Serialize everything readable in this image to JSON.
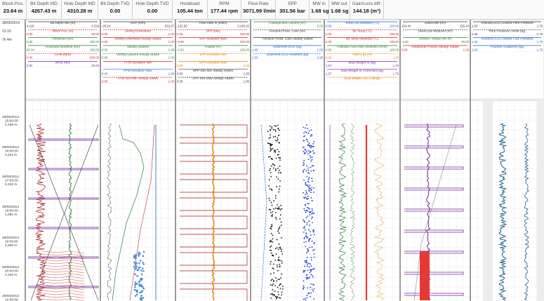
{
  "kpis": [
    {
      "label": "Block Pos.",
      "value": "23.64 m"
    },
    {
      "label": "Bit Depth MD",
      "value": "4267.43 m"
    },
    {
      "label": "Hole Depth MD",
      "value": "4310.28 m"
    },
    {
      "label": "Bit Depth TVD",
      "value": "0.00"
    },
    {
      "label": "Hole Depth TVD",
      "value": "0.00"
    },
    {
      "label": "Hookload",
      "value": "105.44 ton"
    },
    {
      "label": "RPM",
      "value": "177.44 rpm"
    },
    {
      "label": "Flow Rate",
      "value": "3071.99 l/min"
    },
    {
      "label": "SPP",
      "value": "301.56 bar"
    },
    {
      "label": "MW in",
      "value": "1.68 sg"
    },
    {
      "label": "MW out",
      "value": "1.68 sg"
    },
    {
      "label": "Gain/Loss diff.",
      "value": "144.18 (m³)"
    }
  ],
  "time_header": {
    "date": "28/05/2014",
    "time": "21:10",
    "span": "7h 4m"
  },
  "time_labels": [
    {
      "date": "28/05/2014",
      "time": "15:00:00",
      "depth": "4,166 m"
    },
    {
      "date": "28/05/2014",
      "time": "16:00:00",
      "depth": "4,211 m"
    },
    {
      "date": "28/05/2014",
      "time": "17:00:00",
      "depth": "4,242 m"
    },
    {
      "date": "28/05/2014",
      "time": "18:00:00",
      "depth": "4,281 m"
    },
    {
      "date": "28/05/2014",
      "time": "19:00:00",
      "depth": "4,300 m"
    },
    {
      "date": "28/05/2014",
      "time": "20:00:00",
      "depth": "4,322 m"
    },
    {
      "date": "28/05/2014",
      "time": "21:00:00",
      "depth": "4,303 m"
    }
  ],
  "tracks": [
    {
      "curves": [
        {
          "name": "Bit Depth MD (m)",
          "min": "4,118",
          "max": "4,318",
          "color": "#333333"
        },
        {
          "name": "Block Pos. (m)",
          "min": "0.00",
          "max": "50.00",
          "color": "#c62828"
        },
        {
          "name": "Hookload (ton)",
          "min": "0.00",
          "max": "150.00",
          "color": "#2e7d32"
        },
        {
          "name": "Hookload Modeled (ton)",
          "min": "50.34",
          "max": "150.00",
          "color": "#2e7d32"
        },
        {
          "name": "RPM (rpm)",
          "min": "0.00",
          "max": "200.00",
          "color": "#c62828"
        },
        {
          "name": "WOB (ton)",
          "min": "0.00",
          "max": "20.00",
          "color": "#7b1fa2"
        }
      ]
    },
    {
      "curves": [
        {
          "name": "ROP (m/h)",
          "min": "-28.24",
          "max": "822.87",
          "color": "#333333"
        },
        {
          "name": "Sliding Downward",
          "min": "0.00",
          "max": "1.00",
          "color": "#c62828"
        },
        {
          "name": "Sliding Downward Steady States",
          "min": "0.00",
          "max": "1.00",
          "color": "#c62828"
        },
        {
          "name": "Sliding Upward",
          "min": "0.00",
          "max": "1.00",
          "color": "#2e7d32"
        },
        {
          "name": "Sliding Upward Steady States",
          "min": "0.00",
          "max": "1.00",
          "color": "#2e7d32"
        },
        {
          "name": "FFW Deviation Min",
          "min": "",
          "max": "",
          "color": "#c62828"
        },
        {
          "name": "FFW Deviation Max",
          "min": "0.00",
          "max": "1.00",
          "color": "#1565c0"
        },
        {
          "name": "FFW Dev Min Steady States",
          "min": "0.00",
          "max": "1.00",
          "color": "#c62828"
        }
      ]
    },
    {
      "curves": [
        {
          "name": "Flow Rate In (l/min)",
          "min": "-152.50",
          "max": "3,145.02",
          "color": "#333333"
        },
        {
          "name": "SPP (bar)",
          "min": "0.00",
          "max": "320.00",
          "color": "#c62828"
        },
        {
          "name": "SPP Modeled (bar)",
          "min": "-5.00",
          "max": "320.00",
          "color": "#c62828"
        },
        {
          "name": "Paddle (%)",
          "min": "-5.00",
          "max": "100.00",
          "color": "#2e7d32"
        },
        {
          "name": "SPP Deviation Min",
          "min": "",
          "max": "",
          "color": "#e67e00"
        },
        {
          "name": "SPP Deviation Max",
          "min": "0.00",
          "max": "1.00",
          "color": "#e67e00"
        },
        {
          "name": "SPP Dev Min Steady States",
          "min": "0.00",
          "max": "1.00",
          "color": "#333333"
        },
        {
          "name": "SPP Dev Max Steady States",
          "min": "0.00",
          "max": "1.00",
          "color": "#333333"
        }
      ]
    },
    {
      "curves": [
        {
          "name": "Cuttings Bed Volume (m³)",
          "min": "",
          "max": "0.00",
          "color": "#2e7d32"
        },
        {
          "name": "Annulus Press. Loss Dev.",
          "min": "",
          "max": "",
          "color": "#333333"
        },
        {
          "name": "Annulus Press. Loss Steady States",
          "min": "",
          "max": "",
          "color": "#333333"
        },
        {
          "name": "Downhole ECD (sg)",
          "min": "1.60",
          "max": "1.00",
          "color": "#1565c0"
        },
        {
          "name": "Downhole ECD Modeled (sg)",
          "min": "1.60",
          "max": "1.90",
          "color": "#1565c0"
        }
      ]
    },
    {
      "curves": [
        {
          "name": "Temp Out Modeled (°C)",
          "min": "0.00",
          "max": "100.00",
          "color": "#1565c0"
        },
        {
          "name": "Bit Temp (°C)",
          "min": "0.00",
          "max": "100.00",
          "color": "#c62828"
        },
        {
          "name": "Bit Temp Modeled (°C)",
          "min": "0.00",
          "max": "100.00",
          "color": "#c62828"
        },
        {
          "name": "Cuttings Flow Rate Modeled (l/min)",
          "min": "0.00",
          "max": "100.00",
          "color": "#2e7d32"
        },
        {
          "name": "Total Gas (%)",
          "min": "0.00",
          "max": "1.00",
          "color": "#e67e00"
        },
        {
          "name": "Mud Weight In (sg)",
          "min": "1.57",
          "max": "1.70",
          "color": "#7b1fa2"
        },
        {
          "name": "Mud Weight In Corrected (sg)",
          "min": "1.57",
          "max": "1.70",
          "color": "#7b1fa2"
        },
        {
          "name": "Mud Weight Out Cuttings",
          "min": "",
          "max": "",
          "color": "#e67e00"
        }
      ]
    },
    {
      "curves": [
        {
          "name": "Gain/Loss (m³)",
          "min": "154.44",
          "max": "155.44",
          "color": "#333333"
        },
        {
          "name": "Gain/Loss Modeled (m³)",
          "min": "",
          "max": "",
          "color": "#333333"
        },
        {
          "name": "Surface Torque (kN.m)",
          "min": "-3.00",
          "max": "50.00",
          "color": "#2e7d32"
        },
        {
          "name": "Rotational Friction Steady States",
          "min": "0.00",
          "max": "1.00",
          "color": "#c62828"
        }
      ]
    },
    {
      "curves": [
        {
          "name": "Annulus ECD Closest Pore Pressure",
          "min": "1.63",
          "max": "1.78",
          "color": "#333333"
        },
        {
          "name": "Pore Pressure Limits (sg)",
          "min": "1.63",
          "max": "1.78",
          "color": "#333333"
        },
        {
          "name": "Annulus ECD Closest Frac Pressure",
          "min": "1.63",
          "max": "1.78",
          "color": "#1565c0"
        },
        {
          "name": "Fracture Gradients (sg)",
          "min": "1.63",
          "max": "1.78",
          "color": "#1565c0"
        }
      ]
    }
  ],
  "colors": {
    "grid": "#e4e4e4",
    "border": "#222222",
    "shade": "#ededed"
  }
}
